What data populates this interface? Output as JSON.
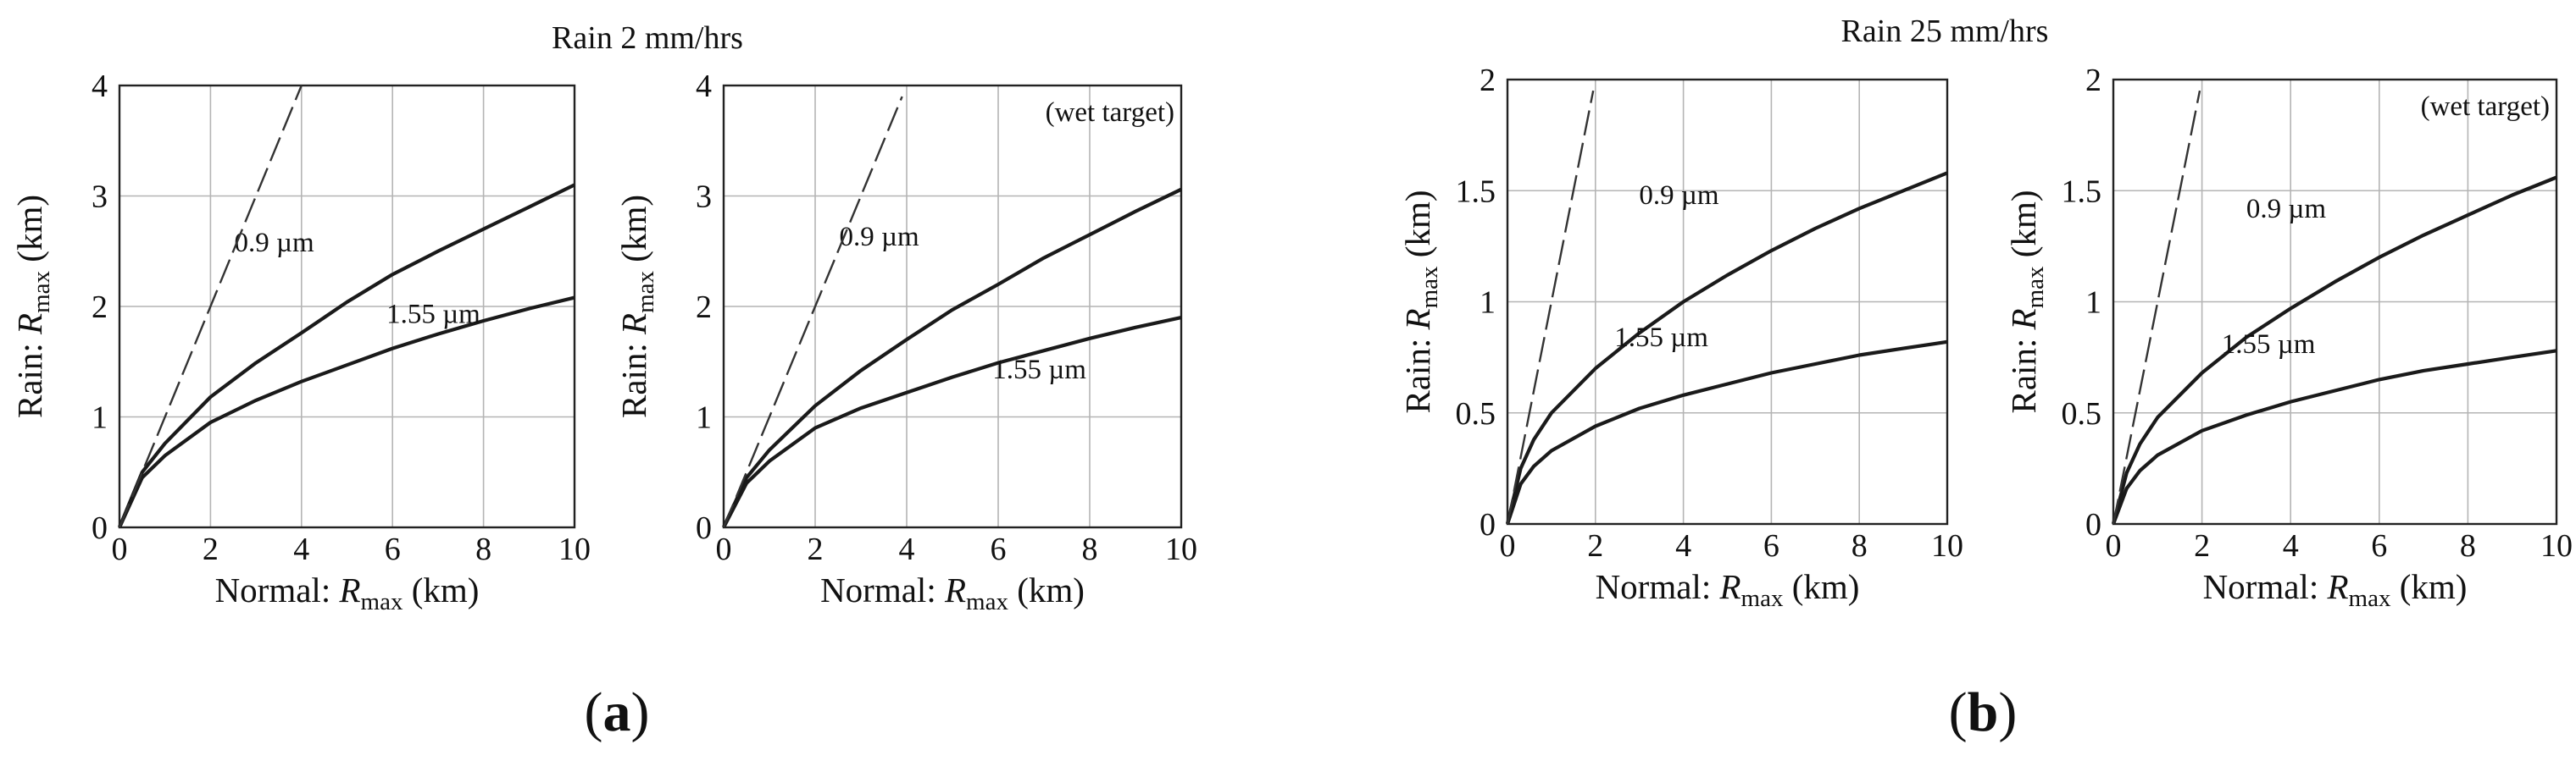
{
  "figure": {
    "groups": [
      {
        "title": "Rain 2 mm/hrs",
        "caption_open": "(",
        "caption_letter": "a",
        "caption_close": ")"
      },
      {
        "title": "Rain 25 mm/hrs",
        "caption_open": "(",
        "caption_letter": "b",
        "caption_close": ")"
      }
    ]
  },
  "chart_data": [
    {
      "type": "line",
      "group": "Rain 2 mm/hrs",
      "note": "",
      "xlabel_prefix": "Normal: ",
      "xlabel_var": "R",
      "xlabel_sub": "max",
      "xlabel_unit": " (km)",
      "ylabel_prefix": "Rain: ",
      "ylabel_var": "R",
      "ylabel_sub": "max",
      "ylabel_unit": " (km)",
      "xlim": [
        0,
        10
      ],
      "ylim": [
        0,
        4
      ],
      "xticks": [
        "0",
        "2",
        "4",
        "6",
        "8",
        "10"
      ],
      "yticks": [
        "0",
        "1",
        "2",
        "3",
        "4"
      ],
      "series": [
        {
          "name": "0.9 µm",
          "label": "0.9 µm",
          "style": "solid",
          "x": [
            0,
            0.5,
            1,
            2,
            3,
            4,
            5,
            6,
            7,
            8,
            9,
            10
          ],
          "y": [
            0,
            0.5,
            0.76,
            1.18,
            1.49,
            1.76,
            2.04,
            2.29,
            2.5,
            2.7,
            2.9,
            3.1
          ]
        },
        {
          "name": "1.55 µm",
          "label": "1.55 µm",
          "style": "solid",
          "x": [
            0,
            0.5,
            1,
            2,
            3,
            4,
            5,
            6,
            7,
            8,
            9,
            10
          ],
          "y": [
            0,
            0.45,
            0.65,
            0.95,
            1.15,
            1.32,
            1.47,
            1.62,
            1.75,
            1.87,
            1.98,
            2.08
          ]
        },
        {
          "name": "y = x reference",
          "label": "",
          "style": "dashed",
          "x": [
            0,
            4
          ],
          "y": [
            0,
            4
          ]
        }
      ]
    },
    {
      "type": "line",
      "group": "Rain 2 mm/hrs",
      "note": "(wet target)",
      "xlabel_prefix": "Normal: ",
      "xlabel_var": "R",
      "xlabel_sub": "max",
      "xlabel_unit": " (km)",
      "ylabel_prefix": "Rain: ",
      "ylabel_var": "R",
      "ylabel_sub": "max",
      "ylabel_unit": " (km)",
      "xlim": [
        0,
        10
      ],
      "ylim": [
        0,
        4
      ],
      "xticks": [
        "0",
        "2",
        "4",
        "6",
        "8",
        "10"
      ],
      "yticks": [
        "0",
        "1",
        "2",
        "3",
        "4"
      ],
      "series": [
        {
          "name": "0.9 µm",
          "label": "0.9 µm",
          "style": "solid",
          "x": [
            0,
            0.5,
            1,
            2,
            3,
            4,
            5,
            6,
            7,
            8,
            9,
            10
          ],
          "y": [
            0,
            0.45,
            0.7,
            1.1,
            1.42,
            1.7,
            1.97,
            2.2,
            2.44,
            2.65,
            2.86,
            3.06
          ]
        },
        {
          "name": "1.55 µm",
          "label": "1.55 µm",
          "style": "solid",
          "x": [
            0,
            0.5,
            1,
            2,
            3,
            4,
            5,
            6,
            7,
            8,
            9,
            10
          ],
          "y": [
            0,
            0.4,
            0.6,
            0.9,
            1.08,
            1.22,
            1.36,
            1.49,
            1.6,
            1.71,
            1.81,
            1.9
          ]
        },
        {
          "name": "y = x reference",
          "label": "",
          "style": "dashed",
          "x": [
            0,
            3.9
          ],
          "y": [
            0,
            3.9
          ]
        }
      ]
    },
    {
      "type": "line",
      "group": "Rain 25 mm/hrs",
      "note": "",
      "xlabel_prefix": "Normal: ",
      "xlabel_var": "R",
      "xlabel_sub": "max",
      "xlabel_unit": " (km)",
      "ylabel_prefix": "Rain: ",
      "ylabel_var": "R",
      "ylabel_sub": "max",
      "ylabel_unit": " (km)",
      "xlim": [
        0,
        10
      ],
      "ylim": [
        0,
        2
      ],
      "xticks": [
        "0",
        "2",
        "4",
        "6",
        "8",
        "10"
      ],
      "yticks": [
        "0",
        "0.5",
        "1",
        "1.5",
        "2"
      ],
      "series": [
        {
          "name": "0.9 µm",
          "label": "0.9 µm",
          "style": "solid",
          "x": [
            0,
            0.3,
            0.6,
            1,
            2,
            3,
            4,
            5,
            6,
            7,
            8,
            9,
            10
          ],
          "y": [
            0,
            0.25,
            0.38,
            0.5,
            0.7,
            0.86,
            1.0,
            1.12,
            1.23,
            1.33,
            1.42,
            1.5,
            1.58
          ]
        },
        {
          "name": "1.55 µm",
          "label": "1.55 µm",
          "style": "solid",
          "x": [
            0,
            0.3,
            0.6,
            1,
            2,
            3,
            4,
            5,
            6,
            7,
            8,
            9,
            10
          ],
          "y": [
            0,
            0.18,
            0.26,
            0.33,
            0.44,
            0.52,
            0.58,
            0.63,
            0.68,
            0.72,
            0.76,
            0.79,
            0.82
          ]
        },
        {
          "name": "y = x reference",
          "label": "",
          "style": "dashed",
          "x": [
            0,
            1.95
          ],
          "y": [
            0,
            1.95
          ]
        }
      ]
    },
    {
      "type": "line",
      "group": "Rain 25 mm/hrs",
      "note": "(wet target)",
      "xlabel_prefix": "Normal: ",
      "xlabel_var": "R",
      "xlabel_sub": "max",
      "xlabel_unit": " (km)",
      "ylabel_prefix": "Rain: ",
      "ylabel_var": "R",
      "ylabel_sub": "max",
      "ylabel_unit": " (km)",
      "xlim": [
        0,
        10
      ],
      "ylim": [
        0,
        2
      ],
      "xticks": [
        "0",
        "2",
        "4",
        "6",
        "8",
        "10"
      ],
      "yticks": [
        "0",
        "0.5",
        "1",
        "1.5",
        "2"
      ],
      "series": [
        {
          "name": "0.9 µm",
          "label": "0.9 µm",
          "style": "solid",
          "x": [
            0,
            0.3,
            0.6,
            1,
            2,
            3,
            4,
            5,
            6,
            7,
            8,
            9,
            10
          ],
          "y": [
            0,
            0.23,
            0.36,
            0.48,
            0.68,
            0.84,
            0.97,
            1.09,
            1.2,
            1.3,
            1.39,
            1.48,
            1.56
          ]
        },
        {
          "name": "1.55 µm",
          "label": "1.55 µm",
          "style": "solid",
          "x": [
            0,
            0.3,
            0.6,
            1,
            2,
            3,
            4,
            5,
            6,
            7,
            8,
            9,
            10
          ],
          "y": [
            0,
            0.16,
            0.24,
            0.31,
            0.42,
            0.49,
            0.55,
            0.6,
            0.65,
            0.69,
            0.72,
            0.75,
            0.78
          ]
        },
        {
          "name": "y = x reference",
          "label": "",
          "style": "dashed",
          "x": [
            0,
            1.95
          ],
          "y": [
            0,
            1.95
          ]
        }
      ]
    }
  ]
}
